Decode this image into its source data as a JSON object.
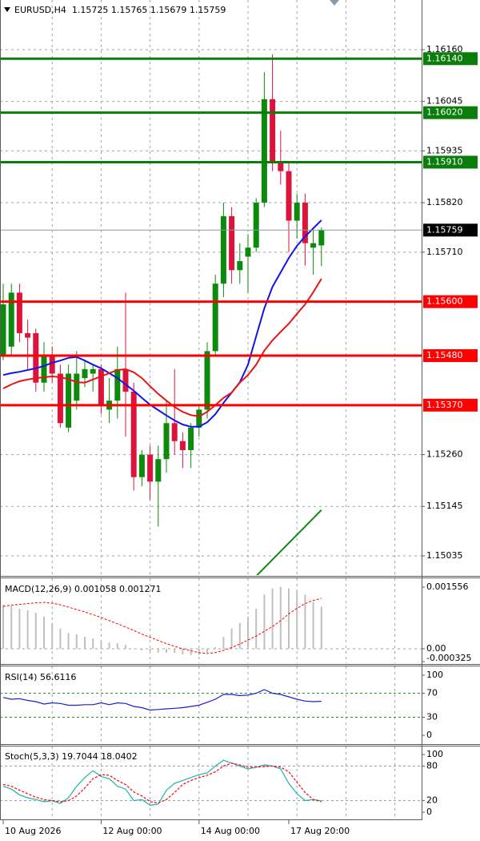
{
  "chart_data": [
    {
      "type": "candlestick",
      "title": "EURUSD,H4  1.15725 1.15765 1.15679 1.15759",
      "categories": [
        "10 Aug 2026",
        null,
        null,
        null,
        null,
        null,
        null,
        null,
        null,
        null,
        null,
        null,
        "12 Aug 00:00",
        null,
        null,
        null,
        null,
        null,
        null,
        null,
        null,
        null,
        null,
        null,
        "14 Aug 00:00",
        null,
        null,
        null,
        null,
        null,
        null,
        null,
        null,
        null,
        null,
        "17 Aug 20:00",
        null,
        null,
        null,
        null
      ],
      "open": [
        1.15478,
        1.155,
        1.1562,
        1.1553,
        1.1553,
        1.1542,
        1.1548,
        1.1544,
        1.1532,
        1.1538,
        1.1543,
        1.1544,
        1.1545,
        1.1536,
        1.1538,
        1.1545,
        1.154,
        1.1521,
        1.1526,
        1.152,
        1.1525,
        1.1533,
        1.1529,
        1.1527,
        1.1532,
        1.1536,
        1.1549,
        1.1564,
        1.1579,
        1.1567,
        1.157,
        1.1572,
        1.1582,
        1.1605,
        1.1591,
        1.1589,
        1.1578,
        1.1582,
        1.1572,
        1.15725
      ],
      "high": [
        1.1564,
        1.1564,
        1.1564,
        1.1556,
        1.1554,
        1.1551,
        1.155,
        1.1546,
        1.1546,
        1.1549,
        1.1547,
        1.1546,
        1.1546,
        1.1543,
        1.155,
        1.1562,
        1.1542,
        1.1527,
        1.1528,
        1.1528,
        1.1538,
        1.1545,
        1.1531,
        1.1533,
        1.1537,
        1.1551,
        1.1566,
        1.1582,
        1.1581,
        1.1573,
        1.1575,
        1.1583,
        1.1611,
        1.1615,
        1.1598,
        1.1591,
        1.1584,
        1.1584,
        1.1576,
        1.15765
      ],
      "low": [
        1.1547,
        1.1548,
        1.1551,
        1.1545,
        1.154,
        1.154,
        1.1542,
        1.1532,
        1.1531,
        1.1536,
        1.1541,
        1.154,
        1.1535,
        1.1533,
        1.1534,
        1.153,
        1.1518,
        1.1519,
        1.1516,
        1.151,
        1.1522,
        1.1526,
        1.1523,
        1.1523,
        1.153,
        1.1534,
        1.1548,
        1.1561,
        1.1564,
        1.1564,
        1.1562,
        1.1571,
        1.1581,
        1.1589,
        1.1586,
        1.1571,
        1.1574,
        1.1568,
        1.1566,
        1.15679
      ],
      "close": [
        1.15594,
        1.1562,
        1.1553,
        1.1552,
        1.1542,
        1.1548,
        1.1544,
        1.1533,
        1.1544,
        1.1544,
        1.1545,
        1.1545,
        1.1537,
        1.1538,
        1.1545,
        1.154,
        1.1521,
        1.1526,
        1.152,
        1.1525,
        1.1533,
        1.1529,
        1.1527,
        1.1532,
        1.1536,
        1.1549,
        1.1564,
        1.1579,
        1.1567,
        1.1569,
        1.1572,
        1.1582,
        1.1605,
        1.1591,
        1.1589,
        1.1578,
        1.1582,
        1.1573,
        1.1573,
        1.15759
      ],
      "up_color": "#0b8a0b",
      "down_color": "#dc143c",
      "series": [
        {
          "color": "#1414e6",
          "values": [
            1.15437,
            1.15441,
            1.15444,
            1.15448,
            1.15452,
            1.15457,
            1.15464,
            1.15469,
            1.15475,
            1.15477,
            1.15469,
            1.1546,
            1.15452,
            1.15441,
            1.1543,
            1.15416,
            1.15402,
            1.15386,
            1.15371,
            1.15359,
            1.15347,
            1.15336,
            1.15327,
            1.15322,
            1.15322,
            1.15332,
            1.1535,
            1.15375,
            1.15398,
            1.15421,
            1.1546,
            1.15523,
            1.15585,
            1.15633,
            1.15665,
            1.15697,
            1.15724,
            1.15745,
            1.15763,
            1.15781
          ]
        },
        {
          "color": "#e81414",
          "values": [
            1.15407,
            1.15416,
            1.15423,
            1.15427,
            1.1543,
            1.15432,
            1.15434,
            1.15432,
            1.15428,
            1.15421,
            1.1542,
            1.15427,
            1.15434,
            1.15441,
            1.15448,
            1.1545,
            1.15443,
            1.1543,
            1.15412,
            1.15395,
            1.1538,
            1.15366,
            1.15355,
            1.15348,
            1.15345,
            1.15355,
            1.1537,
            1.15386,
            1.15398,
            1.1542,
            1.15437,
            1.1546,
            1.15491,
            1.15514,
            1.15533,
            1.15551,
            1.15573,
            1.15594,
            1.15621,
            1.15651
          ]
        }
      ],
      "trendline": {
        "color": "#0b8a0b",
        "x": [
          31,
          39
        ],
        "values": [
          1.1499,
          1.15137
        ]
      },
      "levels": [
        {
          "value": 1.1614,
          "label": "1.16140",
          "color": "#0b7d0b"
        },
        {
          "value": 1.1602,
          "label": "1.16020",
          "color": "#0b7d0b"
        },
        {
          "value": 1.1591,
          "label": "1.15910",
          "color": "#0b7d0b"
        },
        {
          "value": 1.156,
          "label": "1.15600",
          "color": "#ff0000"
        },
        {
          "value": 1.1548,
          "label": "1.15480",
          "color": "#ff0000"
        },
        {
          "value": 1.1537,
          "label": "1.15370",
          "color": "#ff0000"
        }
      ],
      "current_price": {
        "value": 1.15759,
        "label": "1.15759",
        "color": "#000000"
      },
      "ylim": [
        1.149923,
        1.162704
      ],
      "yticks": [
        {
          "value": 1.1616,
          "label": "1.16160"
        },
        {
          "value": 1.16045,
          "label": "1.16045"
        },
        {
          "value": 1.15935,
          "label": "1.15935"
        },
        {
          "value": 1.1582,
          "label": "1.15820"
        },
        {
          "value": 1.1571,
          "label": "1.15710"
        },
        {
          "value": 1.1526,
          "label": "1.15260"
        },
        {
          "value": 1.15145,
          "label": "1.15145"
        },
        {
          "value": 1.15035,
          "label": "1.15035"
        }
      ],
      "grid": true
    },
    {
      "type": "macd",
      "title": "MACD(12,26,9) 0.001058 0.001271",
      "series": [
        {
          "style": "histogram",
          "color": "#c0c0c0",
          "values": [
            0.00111,
            0.00107,
            0.00101,
            0.00097,
            0.00091,
            0.00081,
            0.00065,
            0.00051,
            0.0004,
            0.00036,
            0.0003,
            0.00026,
            0.0002,
            0.00016,
            0.00014,
            0.0001,
            0,
            -4e-05,
            -6e-05,
            -0.0001,
            -0.0001,
            -0.0001,
            -0.00014,
            -0.00016,
            -0.00016,
            -0.0001,
            4e-05,
            0.0003,
            0.00051,
            0.00065,
            0.00081,
            0.00101,
            0.00137,
            0.00152,
            0.00156,
            0.00152,
            0.00145,
            0.00137,
            0.00118,
            0.00106
          ]
        },
        {
          "style": "dashed",
          "color": "#ff0000",
          "values": [
            0.00107,
            0.0011,
            0.00112,
            0.00114,
            0.00116,
            0.00117,
            0.00115,
            0.00111,
            0.00105,
            0.00099,
            0.00093,
            0.00086,
            0.00079,
            0.00071,
            0.00063,
            0.00055,
            0.00046,
            0.00037,
            0.00029,
            0.00021,
            0.00013,
            6e-05,
            0,
            -5e-05,
            -0.0001,
            -0.00012,
            -0.0001,
            -4e-05,
            3e-05,
            0.00012,
            0.00022,
            0.00032,
            0.00044,
            0.00056,
            0.00071,
            0.00088,
            0.00102,
            0.00114,
            0.00122,
            0.001271
          ]
        }
      ],
      "ylim": [
        -0.000364,
        0.001778
      ],
      "yticks": [
        0.001556,
        {
          "value": 0,
          "label": "0.00"
        },
        -0.000325
      ]
    },
    {
      "type": "line",
      "title": "RSI(14) 56.6116",
      "series": [
        {
          "style": "solid",
          "color": "#1e1ed2",
          "values": [
            63,
            60,
            61,
            58,
            56,
            52,
            54,
            53,
            50,
            50,
            51,
            51,
            54,
            51,
            54,
            53,
            48,
            46,
            42,
            43,
            44,
            45,
            46,
            48,
            50,
            55,
            60,
            68,
            68,
            66,
            67,
            70,
            76,
            70,
            68,
            64,
            60,
            57,
            56,
            56.6116
          ]
        }
      ],
      "level_lines": [
        70,
        30
      ],
      "level_color": "#2e8b2e",
      "ylim": [
        -13.3,
        114.7
      ],
      "yticks": [
        100,
        70,
        30,
        0
      ]
    },
    {
      "type": "line",
      "title": "Stoch(5,3,3) 19.7044 18.0402",
      "series": [
        {
          "style": "solid",
          "color": "#20b2aa",
          "values": [
            45,
            40,
            30,
            25,
            22,
            18,
            20,
            15,
            25,
            45,
            60,
            72,
            62,
            58,
            45,
            40,
            20,
            22,
            12,
            14,
            38,
            50,
            55,
            60,
            65,
            68,
            80,
            90,
            85,
            80,
            75,
            78,
            82,
            80,
            75,
            50,
            32,
            20,
            22,
            19.7044
          ]
        },
        {
          "style": "dashed",
          "color": "#ff0000",
          "values": [
            48,
            45,
            38,
            32,
            26,
            22,
            20,
            18,
            20,
            28,
            42,
            58,
            65,
            64,
            55,
            48,
            35,
            28,
            18,
            16,
            22,
            34,
            48,
            55,
            60,
            64,
            70,
            80,
            85,
            82,
            78,
            78,
            79,
            80,
            78,
            70,
            52,
            34,
            22,
            18.0402
          ]
        }
      ],
      "level_lines": [
        80,
        20
      ],
      "level_color": "#8a9aa8",
      "ylim": [
        -11.1,
        113.9
      ],
      "yticks": [
        100,
        80,
        20,
        0
      ]
    }
  ]
}
